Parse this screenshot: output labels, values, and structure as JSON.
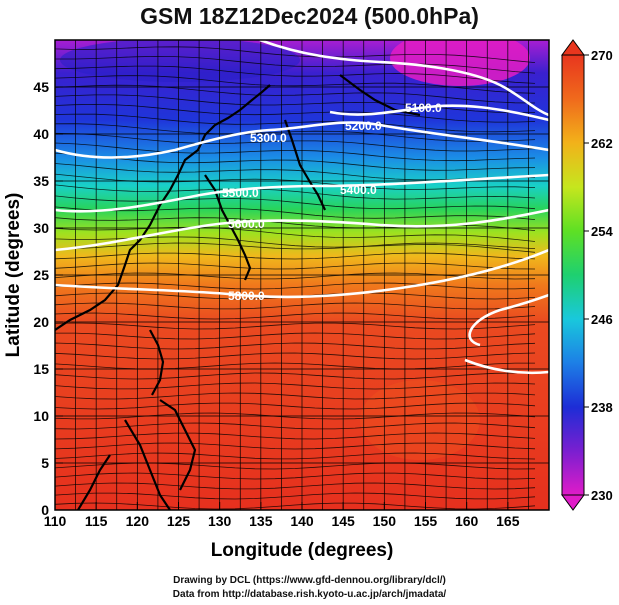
{
  "title": "GSM 18Z12Dec2024 (500.0hPa)",
  "xaxis": {
    "label": "Longitude (degrees)",
    "ticks": [
      "110",
      "115",
      "120",
      "125",
      "130",
      "135",
      "140",
      "145",
      "150",
      "155",
      "160",
      "165"
    ],
    "range": [
      110,
      170
    ]
  },
  "yaxis": {
    "label": "Latitude (degrees)",
    "ticks": [
      "0",
      "5",
      "10",
      "15",
      "20",
      "25",
      "30",
      "35",
      "40",
      "45"
    ],
    "range": [
      0,
      50
    ]
  },
  "colorbar": {
    "ticks": [
      "230",
      "238",
      "246",
      "254",
      "262",
      "270"
    ],
    "range": [
      230,
      270
    ],
    "colors": [
      "#e01cc8",
      "#7a1fd0",
      "#1d2dd6",
      "#1d7fe6",
      "#19c8dc",
      "#1ed070",
      "#5ee024",
      "#c6e61e",
      "#f2b21a",
      "#f06a1c",
      "#e8361e"
    ]
  },
  "contours": [
    {
      "label": "5100.0"
    },
    {
      "label": "5200.0"
    },
    {
      "label": "5300.0"
    },
    {
      "label": "5400.0"
    },
    {
      "label": "5500.0"
    },
    {
      "label": "5600.0"
    },
    {
      "label": "5800.0"
    }
  ],
  "footer": {
    "line1": "Drawing by DCL (https://www.gfd-dennou.org/library/dcl/)",
    "line2": "Data from http://database.rish.kyoto-u.ac.jp/arch/jmadata/"
  }
}
